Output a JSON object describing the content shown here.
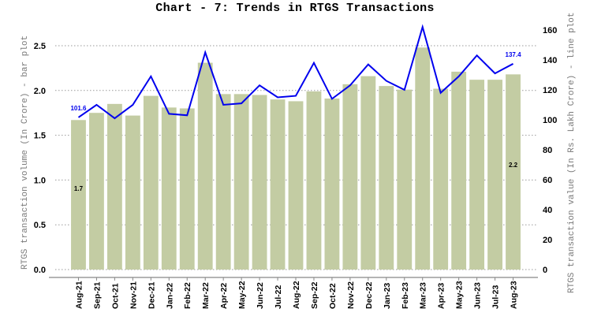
{
  "chart_data": {
    "type": "bar+line",
    "title": "Chart - 7: Trends in RTGS Transactions",
    "xlabel": "",
    "ylabel_left": "RTGS transaction volume (In Crore) - bar plot",
    "ylabel_right": "RTGS transaction value (In Rs. Lakh Crore) - line plot",
    "ylim_left": [
      0,
      2.5
    ],
    "ylim_right": [
      0,
      160
    ],
    "yticks_left": [
      "0.0",
      "0.5",
      "1.0",
      "1.5",
      "2.0",
      "2.5"
    ],
    "yticks_right": [
      "0",
      "20",
      "40",
      "60",
      "80",
      "100",
      "120",
      "140",
      "160"
    ],
    "grid": "horizontal dotted",
    "legend": "none",
    "categories": [
      "Aug-21",
      "Sep-21",
      "Oct-21",
      "Nov-21",
      "Dec-21",
      "Jan-22",
      "Feb-22",
      "Mar-22",
      "Apr-22",
      "May-22",
      "Jun-22",
      "Jul-22",
      "Aug-22",
      "Sep-22",
      "Oct-22",
      "Nov-22",
      "Dec-22",
      "Jan-23",
      "Feb-23",
      "Mar-23",
      "Apr-23",
      "May-23",
      "Jun-23",
      "Jul-23",
      "Aug-23"
    ],
    "series": [
      {
        "name": "RTGS transaction volume (In Crore)",
        "type": "bar",
        "axis": "left",
        "color": "#c3cca3",
        "values": [
          1.67,
          1.75,
          1.85,
          1.72,
          1.94,
          1.81,
          1.8,
          2.31,
          1.96,
          1.96,
          1.95,
          1.9,
          1.88,
          1.99,
          1.91,
          2.07,
          2.16,
          2.05,
          2.01,
          2.48,
          2.02,
          2.21,
          2.12,
          2.12,
          2.18
        ]
      },
      {
        "name": "RTGS transaction value (In Rs. Lakh Crore)",
        "type": "line",
        "axis": "right",
        "color": "#0000ee",
        "values": [
          101.6,
          110,
          101,
          110,
          129,
          104,
          103,
          145,
          110,
          111,
          123,
          115,
          116,
          138,
          114,
          123,
          137,
          126,
          120,
          162,
          118,
          129,
          143,
          131,
          137.4
        ]
      }
    ],
    "annotations": [
      {
        "text": "101.6",
        "category": "Aug-21",
        "series": "line",
        "color": "#0000ee"
      },
      {
        "text": "137.4",
        "category": "Aug-23",
        "series": "line",
        "color": "#0000ee"
      },
      {
        "text": "1.7",
        "category": "Aug-21",
        "series": "bar",
        "color": "#000000"
      },
      {
        "text": "2.2",
        "category": "Aug-23",
        "series": "bar",
        "color": "#000000"
      }
    ]
  }
}
